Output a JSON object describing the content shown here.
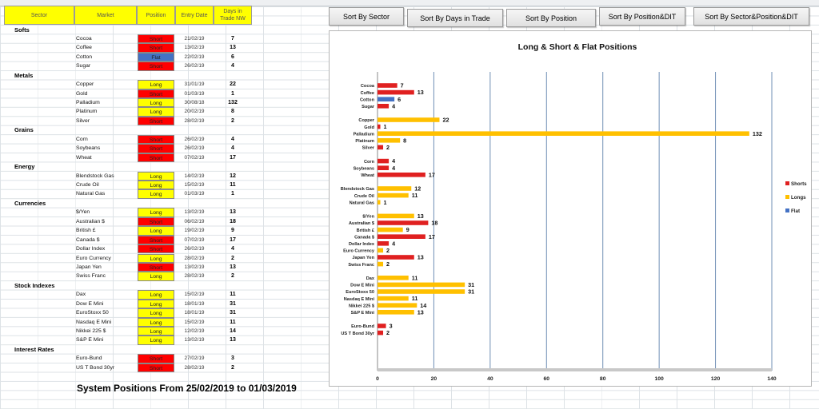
{
  "columns": {
    "sector": "Sector",
    "market": "Market",
    "position": "Position",
    "entry_date": "Entry Date",
    "days": "Days in Trade NW"
  },
  "sectors": [
    {
      "name": "Softs",
      "rows": [
        {
          "market": "Cocoa",
          "position": "Short",
          "date": "21/02/19",
          "days": 7
        },
        {
          "market": "Coffee",
          "position": "Short",
          "date": "13/02/19",
          "days": 13
        },
        {
          "market": "Cotton",
          "position": "Flat",
          "date": "22/02/19",
          "days": 6
        },
        {
          "market": "Sugar",
          "position": "Short",
          "date": "26/02/19",
          "days": 4
        }
      ]
    },
    {
      "name": "Metals",
      "rows": [
        {
          "market": "Copper",
          "position": "Long",
          "date": "31/01/19",
          "days": 22
        },
        {
          "market": "Gold",
          "position": "Short",
          "date": "01/03/19",
          "days": 1
        },
        {
          "market": "Palladium",
          "position": "Long",
          "date": "30/08/18",
          "days": 132
        },
        {
          "market": "Platinum",
          "position": "Long",
          "date": "20/02/19",
          "days": 8
        },
        {
          "market": "Silver",
          "position": "Short",
          "date": "28/02/19",
          "days": 2
        }
      ]
    },
    {
      "name": "Grains",
      "rows": [
        {
          "market": "Corn",
          "position": "Short",
          "date": "26/02/19",
          "days": 4
        },
        {
          "market": "Soybeans",
          "position": "Short",
          "date": "26/02/19",
          "days": 4
        },
        {
          "market": "Wheat",
          "position": "Short",
          "date": "07/02/19",
          "days": 17
        }
      ]
    },
    {
      "name": "Energy",
      "rows": [
        {
          "market": "Blendstock Gas",
          "position": "Long",
          "date": "14/02/19",
          "days": 12
        },
        {
          "market": "Crude Oil",
          "position": "Long",
          "date": "15/02/19",
          "days": 11
        },
        {
          "market": "Natural Gas",
          "position": "Long",
          "date": "01/03/19",
          "days": 1
        }
      ]
    },
    {
      "name": "Currencies",
      "rows": [
        {
          "market": "$/Yen",
          "position": "Long",
          "date": "13/02/19",
          "days": 13
        },
        {
          "market": "Australian $",
          "position": "Short",
          "date": "06/02/19",
          "days": 18
        },
        {
          "market": "British £",
          "position": "Long",
          "date": "19/02/19",
          "days": 9
        },
        {
          "market": "Canada $",
          "position": "Short",
          "date": "07/02/19",
          "days": 17
        },
        {
          "market": "Dollar Index",
          "position": "Short",
          "date": "26/02/19",
          "days": 4
        },
        {
          "market": "Euro Currency",
          "position": "Long",
          "date": "28/02/19",
          "days": 2
        },
        {
          "market": "Japan Yen",
          "position": "Short",
          "date": "13/02/19",
          "days": 13
        },
        {
          "market": "Swiss Franc",
          "position": "Long",
          "date": "28/02/19",
          "days": 2
        }
      ]
    },
    {
      "name": "Stock Indexes",
      "rows": [
        {
          "market": "Dax",
          "position": "Long",
          "date": "15/02/19",
          "days": 11
        },
        {
          "market": "Dow E Mini",
          "position": "Long",
          "date": "18/01/19",
          "days": 31
        },
        {
          "market": "EuroStoxx 50",
          "position": "Long",
          "date": "18/01/19",
          "days": 31
        },
        {
          "market": "Nasdaq E Mini",
          "position": "Long",
          "date": "15/02/19",
          "days": 11
        },
        {
          "market": "Nikkei 225 $",
          "position": "Long",
          "date": "12/02/19",
          "days": 14
        },
        {
          "market": "S&P E Mini",
          "position": "Long",
          "date": "13/02/19",
          "days": 13
        }
      ]
    },
    {
      "name": "Interest Rates",
      "rows": [
        {
          "market": "Euro-Bund",
          "position": "Short",
          "date": "27/02/19",
          "days": 3
        },
        {
          "market": "US T Bond 30yr",
          "position": "Short",
          "date": "28/02/19",
          "days": 2
        }
      ]
    }
  ],
  "footer_title": "System Positions From  25/02/2019  to 01/03/2019",
  "buttons": [
    "Sort By Sector",
    "Sort By Days in Trade",
    "Sort By Position",
    "Sort By Position&DIT",
    "Sort By Sector&Position&DIT"
  ],
  "colors": {
    "short": "#ff0000",
    "long": "#ffff00",
    "flat": "#4472c4",
    "bar_short": "#e02020",
    "bar_long": "#ffc000",
    "bar_flat": "#4472c4",
    "grid": "#6f8fb5"
  },
  "chart_data": {
    "type": "bar",
    "orientation": "horizontal",
    "title": "Long & Short & Flat Positions",
    "xlim": [
      0,
      140
    ],
    "xticks": [
      0,
      20,
      40,
      60,
      80,
      100,
      120,
      140
    ],
    "grid": true,
    "legend_position": "right",
    "series": [
      {
        "name": "Shorts",
        "key": "short"
      },
      {
        "name": "Longs",
        "key": "long"
      },
      {
        "name": "Flat",
        "key": "flat"
      }
    ],
    "groups": [
      [
        {
          "label": "Cocoa",
          "value": 7,
          "s": "short"
        },
        {
          "label": "Coffee",
          "value": 13,
          "s": "short"
        },
        {
          "label": "Cotton",
          "value": 6,
          "s": "flat"
        },
        {
          "label": "Sugar",
          "value": 4,
          "s": "short"
        }
      ],
      [
        {
          "label": "Copper",
          "value": 22,
          "s": "long"
        },
        {
          "label": "Gold",
          "value": 1,
          "s": "short"
        },
        {
          "label": "Palladium",
          "value": 132,
          "s": "long"
        },
        {
          "label": "Platinum",
          "value": 8,
          "s": "long"
        },
        {
          "label": "Silver",
          "value": 2,
          "s": "short"
        }
      ],
      [
        {
          "label": "Corn",
          "value": 4,
          "s": "short"
        },
        {
          "label": "Soybeans",
          "value": 4,
          "s": "short"
        },
        {
          "label": "Wheat",
          "value": 17,
          "s": "short"
        }
      ],
      [
        {
          "label": "Blendstock Gas",
          "value": 12,
          "s": "long"
        },
        {
          "label": "Crude Oil",
          "value": 11,
          "s": "long"
        },
        {
          "label": "Natural Gas",
          "value": 1,
          "s": "long"
        }
      ],
      [
        {
          "label": "$/Yen",
          "value": 13,
          "s": "long"
        },
        {
          "label": "Australian $",
          "value": 18,
          "s": "short"
        },
        {
          "label": "British £",
          "value": 9,
          "s": "long"
        },
        {
          "label": "Canada $",
          "value": 17,
          "s": "short"
        },
        {
          "label": "Dollar Index",
          "value": 4,
          "s": "short"
        },
        {
          "label": "Euro Currency",
          "value": 2,
          "s": "long"
        },
        {
          "label": "Japan Yen",
          "value": 13,
          "s": "short"
        },
        {
          "label": "Swiss Franc",
          "value": 2,
          "s": "long"
        }
      ],
      [
        {
          "label": "Dax",
          "value": 11,
          "s": "long"
        },
        {
          "label": "Dow E Mini",
          "value": 31,
          "s": "long"
        },
        {
          "label": "EuroStoxx 50",
          "value": 31,
          "s": "long"
        },
        {
          "label": "Nasdaq E Mini",
          "value": 11,
          "s": "long"
        },
        {
          "label": "Nikkei 225 $",
          "value": 14,
          "s": "long"
        },
        {
          "label": "S&P E Mini",
          "value": 13,
          "s": "long"
        }
      ],
      [
        {
          "label": "Euro-Bund",
          "value": 3,
          "s": "short"
        },
        {
          "label": "US T Bond 30yr",
          "value": 2,
          "s": "short"
        }
      ]
    ]
  }
}
